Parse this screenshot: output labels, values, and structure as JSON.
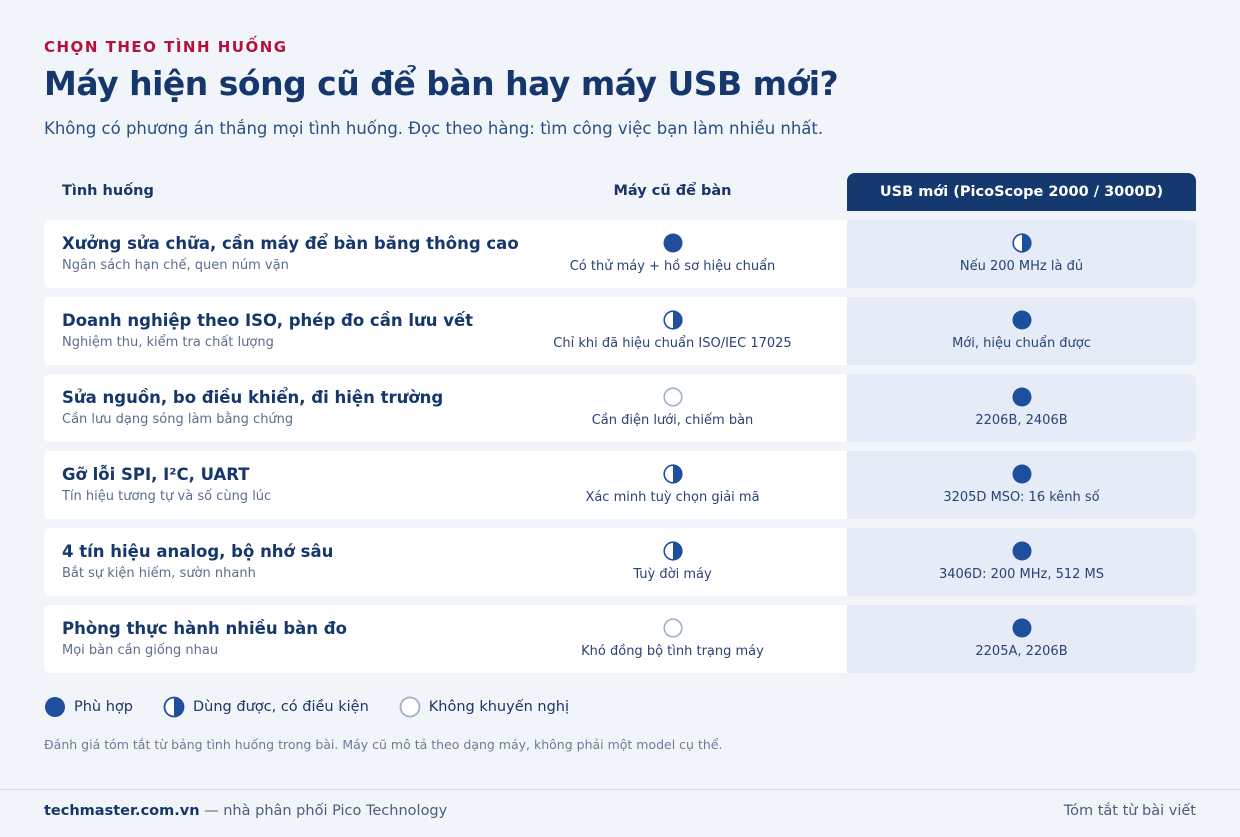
{
  "header": {
    "eyebrow": "CHỌN THEO TÌNH HUỐNG",
    "title": "Máy hiện sóng cũ để bàn hay máy USB mới?",
    "subtitle": "Không có phương án thắng mọi tình huống. Đọc theo hàng: tìm công việc bạn làm nhiều nhất."
  },
  "table": {
    "columns": [
      "Tình huống",
      "Máy cũ để bàn",
      "USB mới (PicoScope 2000 / 3000D)"
    ],
    "rows": [
      {
        "title": "Xưởng sửa chữa, cần máy để bàn băng thông cao",
        "subtitle": "Ngân sách hạn chế, quen núm vặn",
        "old": "Có thử máy + hồ sơ hiệu chuẩn",
        "usb": "Nếu 200 MHz là đủ"
      },
      {
        "title": "Doanh nghiệp theo ISO, phép đo cần lưu vết",
        "subtitle": "Nghiệm thu, kiểm tra chất lượng",
        "old": "Chỉ khi đã hiệu chuẩn ISO/IEC 17025",
        "usb": "Mới, hiệu chuẩn được"
      },
      {
        "title": "Sửa nguồn, bo điều khiển, đi hiện trường",
        "subtitle": "Cần lưu dạng sóng làm bằng chứng",
        "old": "Cần điện lưới, chiếm bàn",
        "usb": "2206B, 2406B"
      },
      {
        "title": "Gỡ lỗi SPI, I²C, UART",
        "subtitle": "Tín hiệu tương tự và số cùng lúc",
        "old": "Xác minh tuỳ chọn giải mã",
        "usb": "3205D MSO: 16 kênh số"
      },
      {
        "title": "4 tín hiệu analog, bộ nhớ sâu",
        "subtitle": "Bắt sự kiện hiếm, sườn nhanh",
        "old": "Tuỳ đời máy",
        "usb": "3406D: 200 MHz, 512 MS"
      },
      {
        "title": "Phòng thực hành nhiều bàn đo",
        "subtitle": "Mọi bàn cần giống nhau",
        "old": "Khó đồng bộ tình trạng máy",
        "usb": "2205A, 2206B"
      }
    ]
  },
  "legend": [
    "Phù hợp",
    "Dùng được, có điều kiện",
    "Không khuyến nghị"
  ],
  "footnote": "Đánh giá tóm tắt từ bảng tình huống trong bài. Máy cũ mô tả theo dạng máy, không phải một model cụ thể.",
  "footer": {
    "site": "techmaster.com.vn",
    "tagline": "— nhà phân phối Pico Technology",
    "right": "Tóm tắt từ bài viết"
  }
}
